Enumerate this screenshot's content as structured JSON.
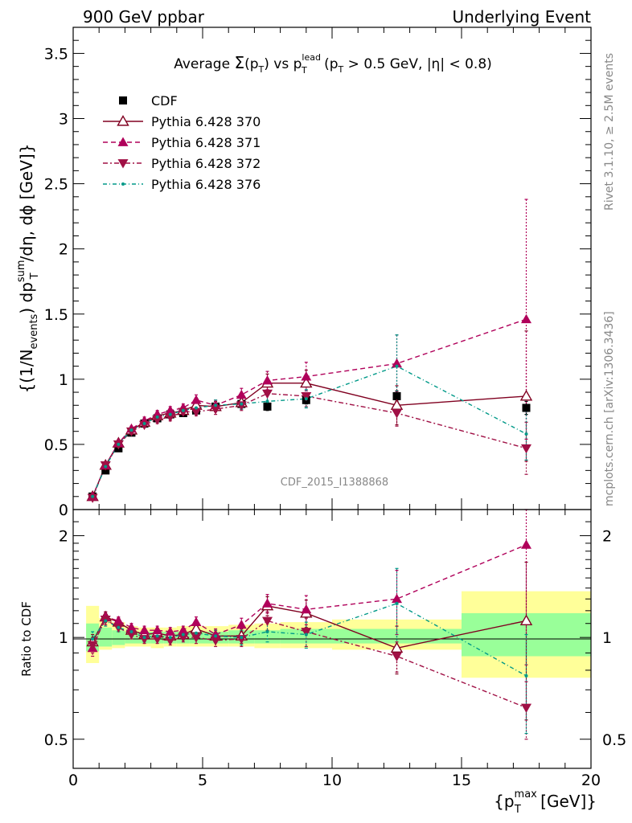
{
  "header": {
    "left": "900 GeV ppbar",
    "right": "Underlying Event"
  },
  "side_labels": {
    "top": "Rivet 3.1.10, ≥ 2.5M events",
    "bottom": "mcplots.cern.ch [arXiv:1306.3436]"
  },
  "watermark": "CDF_2015_I1388868",
  "chart_data": [
    {
      "type": "scatter",
      "panel": "main",
      "title": {
        "prefix": "Average ",
        "sigma": "Σ",
        "sigma_arg": "(p",
        "sigma_sub": "T",
        "sigma_close": ")",
        "vs": " vs p",
        "vs_sup": "lead",
        "vs_sub": "T",
        "cut_open": " (p",
        "cut_sub": "T",
        "cut_rest": " > 0.5 GeV, |η| < 0.8)"
      },
      "ylabel": {
        "a": "{(1/N",
        "a_sub": "events",
        "b": ") dp",
        "b_sup": "sum",
        "b_sub": "T",
        "c": "/dη, dϕ [GeV]}"
      },
      "xlim": [
        0,
        20
      ],
      "ylim": [
        0,
        3.7
      ],
      "yticks": [
        0,
        0.5,
        1,
        1.5,
        2,
        2.5,
        3,
        3.5
      ],
      "ytick_labels": [
        "0",
        "0.5",
        "1",
        "1.5",
        "2",
        "2.5",
        "3",
        "3.5"
      ],
      "legend_position": "top-left",
      "data": {
        "name": "CDF",
        "x": [
          0.75,
          1.25,
          1.75,
          2.25,
          2.75,
          3.25,
          3.75,
          4.25,
          4.75,
          5.5,
          6.5,
          7.5,
          9.0,
          12.5,
          17.5
        ],
        "y": [
          0.1,
          0.3,
          0.47,
          0.59,
          0.66,
          0.7,
          0.73,
          0.74,
          0.76,
          0.79,
          0.81,
          0.79,
          0.84,
          0.87,
          0.78
        ],
        "err": [
          0.01,
          0.02,
          0.02,
          0.02,
          0.02,
          0.02,
          0.02,
          0.02,
          0.02,
          0.02,
          0.02,
          0.03,
          0.03,
          0.04,
          0.05
        ]
      },
      "series": [
        {
          "name": "Pythia 6.428 370",
          "color": "#800020",
          "marker": "triangle-up-open",
          "dash": "",
          "x": [
            0.75,
            1.25,
            1.75,
            2.25,
            2.75,
            3.25,
            3.75,
            4.25,
            4.75,
            5.5,
            6.5,
            7.5,
            9.0,
            12.5,
            17.5
          ],
          "y": [
            0.1,
            0.34,
            0.51,
            0.61,
            0.67,
            0.72,
            0.74,
            0.76,
            0.8,
            0.79,
            0.82,
            0.97,
            0.97,
            0.8,
            0.87
          ],
          "err": [
            0.01,
            0.02,
            0.02,
            0.02,
            0.02,
            0.03,
            0.03,
            0.03,
            0.04,
            0.04,
            0.05,
            0.07,
            0.1,
            0.15,
            0.5
          ]
        },
        {
          "name": "Pythia 6.428 371",
          "color": "#b0005a",
          "marker": "triangle-up-filled",
          "dash": "6,4",
          "x": [
            0.75,
            1.25,
            1.75,
            2.25,
            2.75,
            3.25,
            3.75,
            4.25,
            4.75,
            5.5,
            6.5,
            7.5,
            9.0,
            12.5,
            17.5
          ],
          "y": [
            0.1,
            0.34,
            0.51,
            0.62,
            0.68,
            0.73,
            0.76,
            0.78,
            0.84,
            0.8,
            0.88,
            0.99,
            1.02,
            1.12,
            1.46
          ],
          "err": [
            0.01,
            0.02,
            0.02,
            0.02,
            0.03,
            0.03,
            0.03,
            0.03,
            0.04,
            0.04,
            0.05,
            0.07,
            0.11,
            0.22,
            0.92
          ]
        },
        {
          "name": "Pythia 6.428 372",
          "color": "#a01045",
          "marker": "triangle-down-filled",
          "dash": "6,3,2,3",
          "x": [
            0.75,
            1.25,
            1.75,
            2.25,
            2.75,
            3.25,
            3.75,
            4.25,
            4.75,
            5.5,
            6.5,
            7.5,
            9.0,
            12.5,
            17.5
          ],
          "y": [
            0.09,
            0.34,
            0.5,
            0.6,
            0.65,
            0.69,
            0.71,
            0.75,
            0.75,
            0.77,
            0.8,
            0.89,
            0.87,
            0.74,
            0.47
          ],
          "err": [
            0.01,
            0.02,
            0.02,
            0.02,
            0.02,
            0.03,
            0.03,
            0.03,
            0.03,
            0.04,
            0.04,
            0.06,
            0.08,
            0.1,
            0.2
          ]
        },
        {
          "name": "Pythia 6.428 376",
          "color": "#009988",
          "marker": "dot",
          "dash": "5,3,1,3",
          "x": [
            0.75,
            1.25,
            1.75,
            2.25,
            2.75,
            3.25,
            3.75,
            4.25,
            4.75,
            5.5,
            6.5,
            7.5,
            9.0,
            12.5,
            17.5
          ],
          "y": [
            0.1,
            0.33,
            0.5,
            0.61,
            0.66,
            0.71,
            0.73,
            0.76,
            0.78,
            0.8,
            0.81,
            0.83,
            0.85,
            1.1,
            0.58
          ],
          "err": [
            0.01,
            0.02,
            0.02,
            0.02,
            0.02,
            0.03,
            0.03,
            0.03,
            0.03,
            0.04,
            0.04,
            0.05,
            0.07,
            0.24,
            0.2
          ]
        }
      ]
    },
    {
      "type": "scatter",
      "panel": "ratio",
      "ylabel": "Ratio to CDF",
      "xlabel": {
        "a": "{p",
        "a_sup": "max",
        "a_sub": "T",
        "b": " [GeV]}"
      },
      "xlim": [
        0,
        20
      ],
      "ylim": [
        0.41,
        2.39
      ],
      "log_y": true,
      "xticks": [
        0,
        5,
        10,
        15,
        20
      ],
      "xtick_labels": [
        "0",
        "5",
        "10",
        "15",
        "20"
      ],
      "yticks": [
        0.5,
        1,
        2
      ],
      "ytick_labels": [
        "0.5",
        "1",
        "2"
      ],
      "band_colors": {
        "inner": "#99ff99",
        "outer": "#ffff99"
      },
      "bands": [
        {
          "x0": 0.5,
          "x1": 1.0,
          "inner": [
            0.91,
            1.1
          ],
          "outer": [
            0.84,
            1.24
          ]
        },
        {
          "x0": 1.0,
          "x1": 1.5,
          "inner": [
            0.94,
            1.07
          ],
          "outer": [
            0.92,
            1.14
          ]
        },
        {
          "x0": 1.5,
          "x1": 2.0,
          "inner": [
            0.95,
            1.05
          ],
          "outer": [
            0.93,
            1.11
          ]
        },
        {
          "x0": 2.0,
          "x1": 2.5,
          "inner": [
            0.96,
            1.04
          ],
          "outer": [
            0.94,
            1.08
          ]
        },
        {
          "x0": 2.5,
          "x1": 3.0,
          "inner": [
            0.96,
            1.04
          ],
          "outer": [
            0.94,
            1.07
          ]
        },
        {
          "x0": 3.0,
          "x1": 3.5,
          "inner": [
            0.96,
            1.04
          ],
          "outer": [
            0.93,
            1.07
          ]
        },
        {
          "x0": 3.5,
          "x1": 4.0,
          "inner": [
            0.96,
            1.04
          ],
          "outer": [
            0.94,
            1.07
          ]
        },
        {
          "x0": 4.0,
          "x1": 4.5,
          "inner": [
            0.96,
            1.04
          ],
          "outer": [
            0.94,
            1.08
          ]
        },
        {
          "x0": 4.5,
          "x1": 5.0,
          "inner": [
            0.96,
            1.04
          ],
          "outer": [
            0.94,
            1.08
          ]
        },
        {
          "x0": 5.0,
          "x1": 6.0,
          "inner": [
            0.96,
            1.04
          ],
          "outer": [
            0.94,
            1.08
          ]
        },
        {
          "x0": 6.0,
          "x1": 7.0,
          "inner": [
            0.96,
            1.05
          ],
          "outer": [
            0.94,
            1.09
          ]
        },
        {
          "x0": 7.0,
          "x1": 8.0,
          "inner": [
            0.96,
            1.05
          ],
          "outer": [
            0.93,
            1.1
          ]
        },
        {
          "x0": 8.0,
          "x1": 10.0,
          "inner": [
            0.96,
            1.06
          ],
          "outer": [
            0.93,
            1.11
          ]
        },
        {
          "x0": 10.0,
          "x1": 15.0,
          "inner": [
            0.96,
            1.06
          ],
          "outer": [
            0.92,
            1.13
          ]
        },
        {
          "x0": 15.0,
          "x1": 20.0,
          "inner": [
            0.88,
            1.18
          ],
          "outer": [
            0.76,
            1.37
          ]
        }
      ],
      "series": [
        {
          "name": "Pythia 6.428 370",
          "x": [
            0.75,
            1.25,
            1.75,
            2.25,
            2.75,
            3.25,
            3.75,
            4.25,
            4.75,
            5.5,
            6.5,
            7.5,
            9.0,
            12.5,
            17.5
          ],
          "y": [
            0.97,
            1.15,
            1.11,
            1.05,
            1.02,
            1.03,
            1.01,
            1.02,
            1.06,
            1.01,
            1.01,
            1.24,
            1.18,
            0.93,
            1.12
          ],
          "err": [
            0.05,
            0.04,
            0.03,
            0.03,
            0.03,
            0.03,
            0.03,
            0.03,
            0.04,
            0.04,
            0.05,
            0.08,
            0.11,
            0.15,
            0.55
          ]
        },
        {
          "name": "Pythia 6.428 371",
          "x": [
            0.75,
            1.25,
            1.75,
            2.25,
            2.75,
            3.25,
            3.75,
            4.25,
            4.75,
            5.5,
            6.5,
            7.5,
            9.0,
            12.5,
            17.5
          ],
          "y": [
            0.93,
            1.15,
            1.12,
            1.07,
            1.05,
            1.05,
            1.04,
            1.05,
            1.11,
            1.02,
            1.09,
            1.26,
            1.21,
            1.3,
            1.88
          ],
          "err": [
            0.05,
            0.04,
            0.03,
            0.03,
            0.03,
            0.03,
            0.03,
            0.03,
            0.04,
            0.04,
            0.05,
            0.08,
            0.12,
            0.28,
            1.05
          ]
        },
        {
          "name": "Pythia 6.428 372",
          "x": [
            0.75,
            1.25,
            1.75,
            2.25,
            2.75,
            3.25,
            3.75,
            4.25,
            4.75,
            5.5,
            6.5,
            7.5,
            9.0,
            12.5,
            17.5
          ],
          "y": [
            0.95,
            1.13,
            1.07,
            1.02,
            0.99,
            0.99,
            0.98,
            1.0,
            1.0,
            0.98,
            0.99,
            1.12,
            1.04,
            0.88,
            0.62
          ],
          "err": [
            0.05,
            0.04,
            0.03,
            0.03,
            0.03,
            0.03,
            0.03,
            0.03,
            0.04,
            0.04,
            0.05,
            0.07,
            0.1,
            0.09,
            0.12
          ]
        },
        {
          "name": "Pythia 6.428 376",
          "x": [
            0.75,
            1.25,
            1.75,
            2.25,
            2.75,
            3.25,
            3.75,
            4.25,
            4.75,
            5.5,
            6.5,
            7.5,
            9.0,
            12.5,
            17.5
          ],
          "y": [
            0.99,
            1.12,
            1.07,
            1.04,
            1.0,
            1.01,
            1.0,
            1.02,
            1.03,
            1.01,
            1.0,
            1.04,
            1.02,
            1.26,
            0.77
          ],
          "err": [
            0.05,
            0.04,
            0.03,
            0.03,
            0.03,
            0.03,
            0.03,
            0.03,
            0.04,
            0.04,
            0.05,
            0.07,
            0.09,
            0.34,
            0.25
          ]
        }
      ]
    }
  ]
}
